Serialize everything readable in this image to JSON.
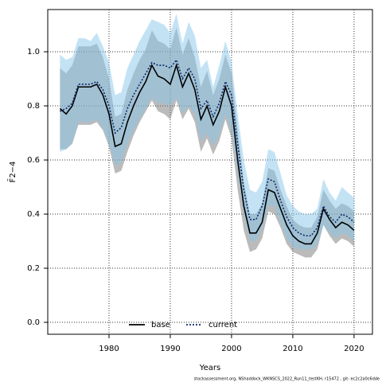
{
  "chart_data": {
    "type": "line",
    "xlabel": "Years",
    "ylabel": "F̄2−4",
    "footer": "stockassessment.org, NShaddock_WKNSCS_2022_Run11_testKH, r15472 , git: ec2c2a0c6dde",
    "x": [
      1972,
      1973,
      1974,
      1975,
      1976,
      1977,
      1978,
      1979,
      1980,
      1981,
      1982,
      1983,
      1984,
      1985,
      1986,
      1987,
      1988,
      1989,
      1990,
      1991,
      1992,
      1993,
      1994,
      1995,
      1996,
      1997,
      1998,
      1999,
      2000,
      2001,
      2002,
      2003,
      2004,
      2005,
      2006,
      2007,
      2008,
      2009,
      2010,
      2011,
      2012,
      2013,
      2014,
      2015,
      2016,
      2017,
      2018,
      2019,
      2020
    ],
    "series": [
      {
        "name": "base",
        "color": "#000000",
        "band_color": "rgba(120,120,120,0.5)",
        "dash": "solid",
        "values": [
          0.79,
          0.77,
          0.8,
          0.87,
          0.87,
          0.87,
          0.88,
          0.84,
          0.77,
          0.65,
          0.66,
          0.74,
          0.8,
          0.85,
          0.89,
          0.95,
          0.91,
          0.9,
          0.88,
          0.95,
          0.87,
          0.92,
          0.86,
          0.75,
          0.8,
          0.73,
          0.78,
          0.87,
          0.8,
          0.6,
          0.43,
          0.33,
          0.33,
          0.37,
          0.49,
          0.48,
          0.42,
          0.36,
          0.32,
          0.3,
          0.29,
          0.29,
          0.33,
          0.42,
          0.38,
          0.35,
          0.37,
          0.36,
          0.34
        ],
        "lower": [
          0.64,
          0.64,
          0.66,
          0.73,
          0.73,
          0.73,
          0.74,
          0.71,
          0.65,
          0.55,
          0.56,
          0.63,
          0.69,
          0.74,
          0.78,
          0.82,
          0.78,
          0.77,
          0.75,
          0.82,
          0.75,
          0.79,
          0.74,
          0.63,
          0.68,
          0.62,
          0.67,
          0.75,
          0.68,
          0.49,
          0.34,
          0.26,
          0.27,
          0.31,
          0.41,
          0.4,
          0.35,
          0.29,
          0.26,
          0.25,
          0.24,
          0.24,
          0.27,
          0.36,
          0.32,
          0.29,
          0.31,
          0.3,
          0.28
        ],
        "upper": [
          0.94,
          0.92,
          0.95,
          1.02,
          1.02,
          1.02,
          1.03,
          0.98,
          0.9,
          0.76,
          0.77,
          0.86,
          0.92,
          0.97,
          1.01,
          1.08,
          1.04,
          1.03,
          1.01,
          1.09,
          0.99,
          1.05,
          0.98,
          0.87,
          0.93,
          0.84,
          0.9,
          0.99,
          0.92,
          0.71,
          0.52,
          0.4,
          0.4,
          0.44,
          0.57,
          0.56,
          0.49,
          0.43,
          0.38,
          0.36,
          0.35,
          0.35,
          0.39,
          0.49,
          0.45,
          0.42,
          0.44,
          0.43,
          0.41
        ]
      },
      {
        "name": "current",
        "color": "#0b2a6b",
        "band_color": "rgba(135,200,235,0.5)",
        "dash": "dotted",
        "values": [
          0.78,
          0.79,
          0.81,
          0.88,
          0.88,
          0.88,
          0.89,
          0.86,
          0.8,
          0.7,
          0.72,
          0.79,
          0.84,
          0.88,
          0.92,
          0.96,
          0.95,
          0.95,
          0.94,
          0.97,
          0.9,
          0.94,
          0.9,
          0.79,
          0.82,
          0.76,
          0.81,
          0.89,
          0.84,
          0.66,
          0.49,
          0.38,
          0.38,
          0.43,
          0.53,
          0.52,
          0.45,
          0.39,
          0.35,
          0.33,
          0.32,
          0.32,
          0.35,
          0.43,
          0.39,
          0.37,
          0.4,
          0.39,
          0.37
        ],
        "lower": [
          0.63,
          0.64,
          0.66,
          0.74,
          0.74,
          0.74,
          0.75,
          0.72,
          0.66,
          0.58,
          0.59,
          0.66,
          0.71,
          0.75,
          0.79,
          0.83,
          0.81,
          0.81,
          0.8,
          0.83,
          0.77,
          0.8,
          0.77,
          0.67,
          0.7,
          0.65,
          0.69,
          0.77,
          0.71,
          0.55,
          0.4,
          0.3,
          0.3,
          0.35,
          0.43,
          0.43,
          0.37,
          0.31,
          0.28,
          0.27,
          0.27,
          0.27,
          0.29,
          0.36,
          0.33,
          0.31,
          0.33,
          0.32,
          0.3
        ],
        "upper": [
          0.99,
          0.97,
          0.98,
          1.05,
          1.05,
          1.04,
          1.07,
          1.02,
          0.96,
          0.84,
          0.85,
          0.94,
          0.99,
          1.04,
          1.08,
          1.12,
          1.11,
          1.1,
          1.07,
          1.14,
          1.03,
          1.11,
          1.06,
          0.94,
          0.97,
          0.87,
          0.95,
          1.04,
          0.96,
          0.77,
          0.6,
          0.49,
          0.48,
          0.52,
          0.64,
          0.63,
          0.55,
          0.47,
          0.43,
          0.41,
          0.4,
          0.4,
          0.42,
          0.53,
          0.48,
          0.45,
          0.5,
          0.48,
          0.46
        ]
      }
    ],
    "xlim": [
      1970,
      2023
    ],
    "xticks": [
      1980,
      1990,
      2000,
      2010,
      2020
    ],
    "ylim": [
      -0.044,
      1.156
    ],
    "yticks": [
      {
        "value": 0,
        "label": "0.0"
      },
      0.2,
      0.4,
      0.6,
      0.8,
      {
        "value": 1,
        "label": "1.0"
      }
    ],
    "grid": true,
    "legend": "bottom"
  }
}
